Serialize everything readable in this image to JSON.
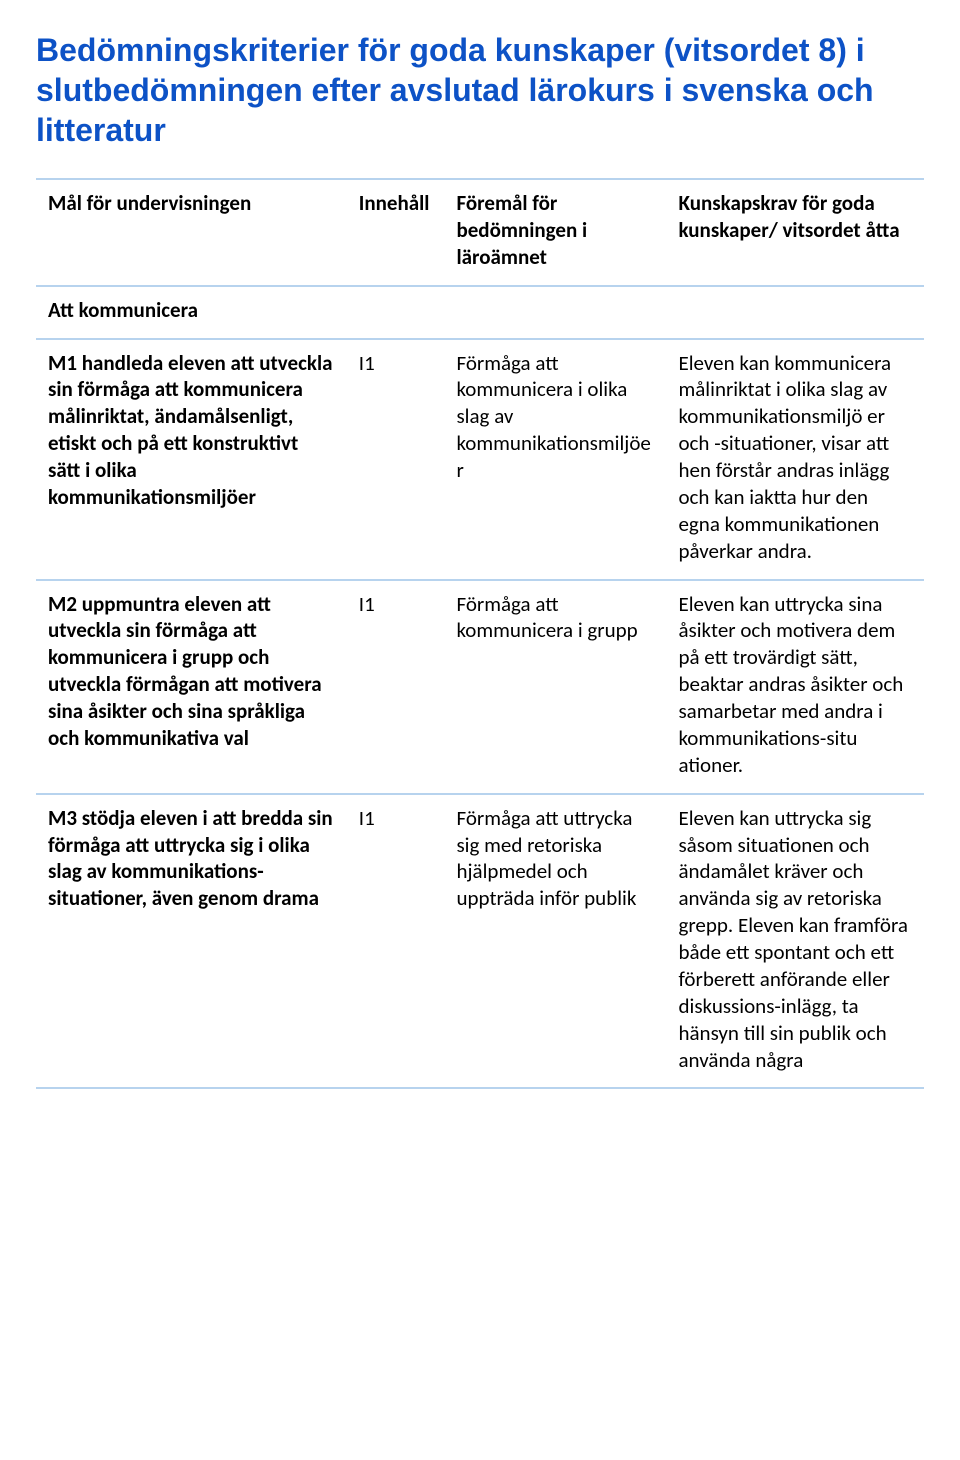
{
  "colors": {
    "heading": "#0d52c6",
    "text": "#000000",
    "border": "#b7d3ee",
    "background": "#ffffff"
  },
  "heading": "Bedömningskriterier för goda kunskaper (vitsordet 8) i slutbedömningen efter avslutad lärokurs i svenska och litteratur",
  "columns": [
    "Mål för undervisningen",
    "Innehåll",
    "Föremål för bedömningen i läroämnet",
    "Kunskapskrav för goda kunskaper/ vitsordet åtta"
  ],
  "section": "Att kommunicera",
  "rows": [
    {
      "c1": "M1 handleda eleven att utveckla sin förmåga att kommunicera målinriktat, ändamålsenligt, etiskt och på ett konstruktivt sätt i olika kommunikationsmiljöer",
      "c2": "I1",
      "c3": "Förmåga att kommunicera i olika slag av kommunikationsmiljöe r",
      "c4": "Eleven kan kommunicera målinriktat i olika slag av kommunikationsmiljö er och -situationer, visar att hen förstår andras inlägg och kan iaktta hur den egna kommunikationen påverkar andra."
    },
    {
      "c1": "M2 uppmuntra eleven att utveckla sin förmåga att kommunicera i grupp och utveckla förmågan att motivera sina åsikter och sina språkliga och kommunikativa val",
      "c2": "I1",
      "c3": "Förmåga att kommunicera i grupp",
      "c4": "Eleven kan uttrycka sina åsikter och motivera dem på ett trovärdigt sätt, beaktar andras åsikter och samarbetar med andra i kommunikations-situ ationer."
    },
    {
      "c1": "M3 stödja eleven i att bredda sin förmåga att uttrycka sig i olika slag av kommunikations-situationer, även genom drama",
      "c2": "I1",
      "c3": "Förmåga att uttrycka sig med retoriska hjälpmedel och uppträda inför publik",
      "c4": "Eleven kan uttrycka sig såsom situationen och ändamålet kräver och använda sig av retoriska grepp. Eleven kan framföra både ett spontant och ett förberett anförande eller diskussions-inlägg, ta hänsyn till sin publik och använda några"
    }
  ]
}
